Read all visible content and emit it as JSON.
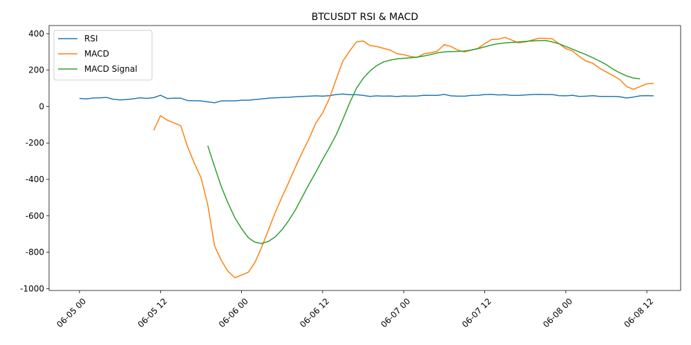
{
  "chart_data": {
    "type": "line",
    "title": "BTCUSDT RSI & MACD",
    "xlabel": "",
    "ylabel": "",
    "x_ticks": [
      "06-05 00",
      "06-05 12",
      "06-06 00",
      "06-06 12",
      "06-07 00",
      "06-07 12",
      "06-08 00",
      "06-08 12"
    ],
    "x_unit": "hours since 06-05 00",
    "xlim": [
      -4.5,
      89
    ],
    "y_ticks": [
      -1000,
      -800,
      -600,
      -400,
      -200,
      0,
      200,
      400
    ],
    "ylim": [
      -1010,
      445
    ],
    "grid": false,
    "legend_position": "top-left",
    "series": [
      {
        "name": "RSI",
        "color": "#1f77b4",
        "start_hour": 0,
        "values": [
          45,
          42,
          47,
          48,
          50,
          40,
          37,
          39,
          43,
          48,
          45,
          49,
          62,
          44,
          46,
          46,
          33,
          32,
          31,
          26,
          21,
          31,
          31,
          31,
          35,
          35,
          39,
          42,
          46,
          48,
          50,
          51,
          54,
          56,
          57,
          59,
          57,
          60,
          66,
          69,
          65,
          65,
          61,
          56,
          59,
          57,
          58,
          55,
          58,
          57,
          58,
          62,
          61,
          61,
          67,
          59,
          57,
          57,
          61,
          62,
          66,
          67,
          64,
          65,
          61,
          61,
          64,
          66,
          67,
          66,
          66,
          60,
          59,
          62,
          56,
          57,
          60,
          56,
          56,
          56,
          54,
          47,
          52,
          59,
          60,
          59
        ]
      },
      {
        "name": "MACD",
        "color": "#ff7f0e",
        "start_hour": 11,
        "values": [
          -130,
          -50,
          -75,
          -90,
          -105,
          -220,
          -310,
          -390,
          -540,
          -765,
          -845,
          -905,
          -940,
          -925,
          -910,
          -855,
          -770,
          -675,
          -580,
          -495,
          -415,
          -330,
          -250,
          -175,
          -90,
          -35,
          45,
          150,
          250,
          305,
          355,
          360,
          335,
          330,
          320,
          310,
          290,
          285,
          275,
          270,
          290,
          295,
          305,
          340,
          330,
          310,
          300,
          310,
          320,
          345,
          368,
          370,
          380,
          365,
          350,
          355,
          365,
          375,
          375,
          372,
          345,
          318,
          305,
          275,
          250,
          238,
          210,
          190,
          170,
          148,
          110,
          95,
          110,
          125,
          128
        ]
      },
      {
        "name": "MACD Signal",
        "color": "#2ca02c",
        "start_hour": 19,
        "values": [
          -215,
          -330,
          -440,
          -530,
          -610,
          -670,
          -720,
          -745,
          -752,
          -740,
          -715,
          -675,
          -625,
          -565,
          -495,
          -425,
          -360,
          -290,
          -225,
          -155,
          -70,
          20,
          100,
          155,
          195,
          225,
          245,
          255,
          262,
          265,
          268,
          272,
          278,
          285,
          295,
          300,
          302,
          303,
          305,
          310,
          318,
          328,
          338,
          345,
          350,
          352,
          355,
          358,
          360,
          362,
          363,
          355,
          345,
          330,
          315,
          300,
          285,
          268,
          250,
          230,
          205,
          185,
          168,
          157,
          152
        ]
      }
    ]
  }
}
